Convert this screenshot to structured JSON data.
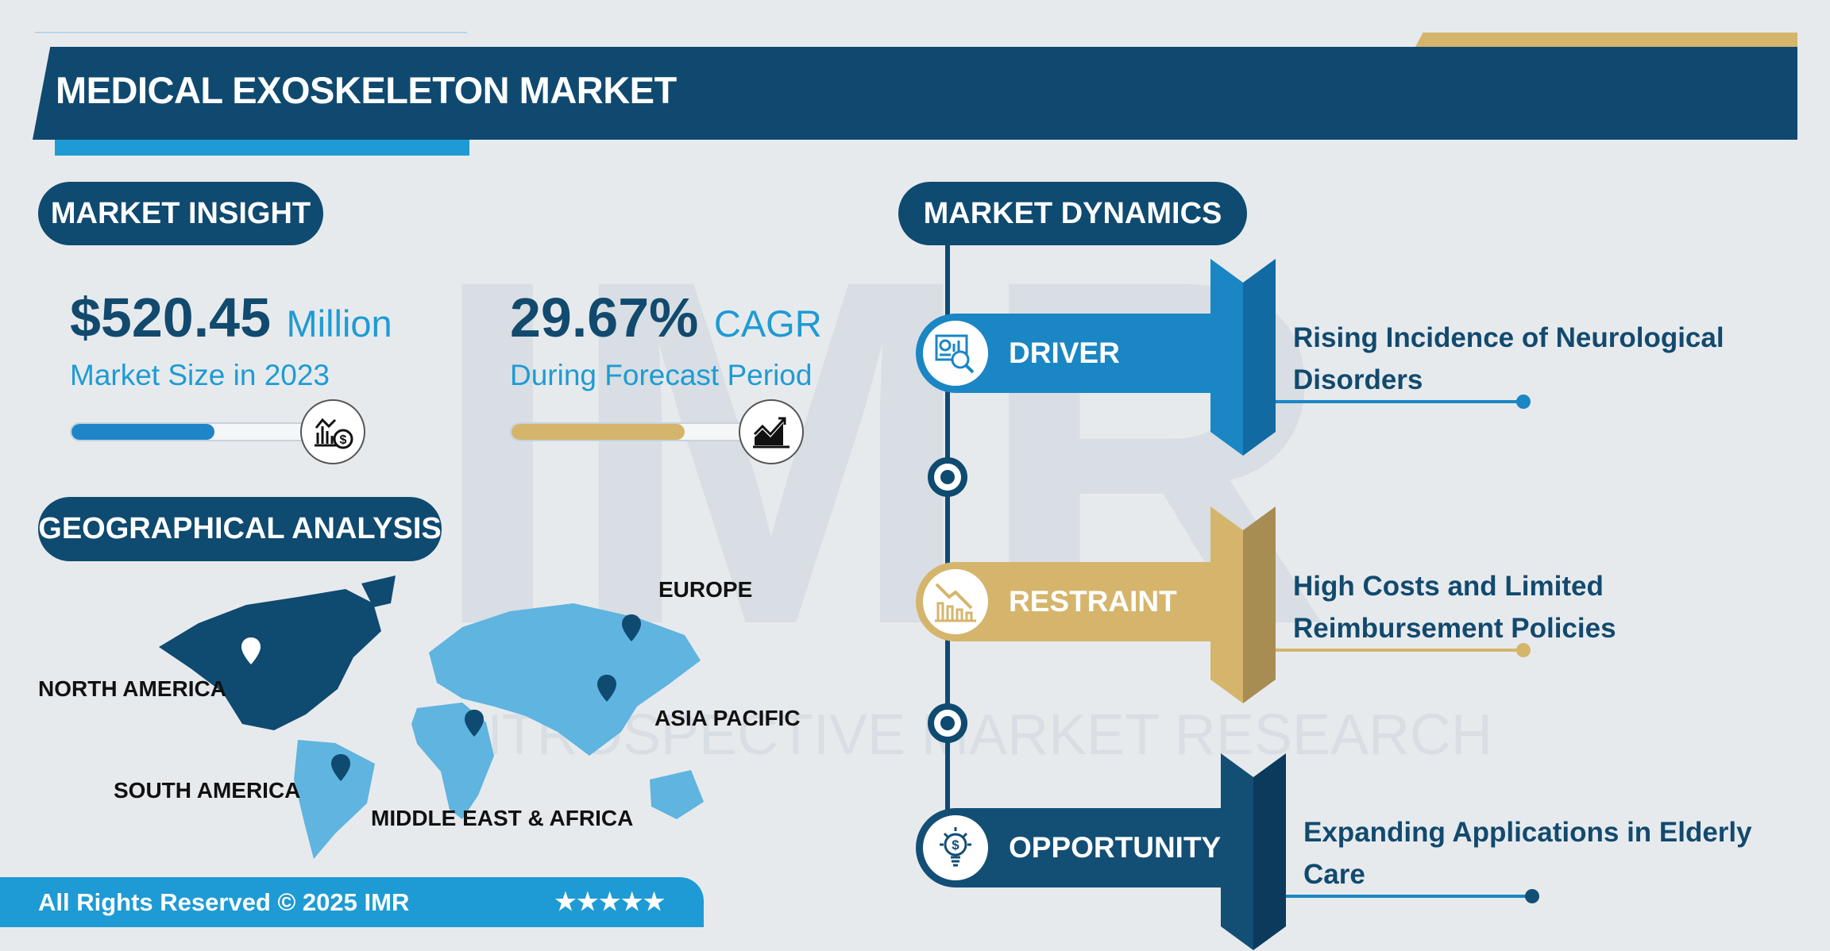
{
  "header": {
    "title": "MEDICAL EXOSKELETON MARKET"
  },
  "watermark": {
    "logo": "IMR",
    "text": "INTROSPECTIVE MARKET RESEARCH"
  },
  "market_insight": {
    "label": "MARKET INSIGHT",
    "size": {
      "value": "$520.45",
      "unit": "Million",
      "caption": "Market Size in 2023",
      "progress": 0.55,
      "icon": "bar-chart-dollar-icon"
    },
    "cagr": {
      "value": "29.67%",
      "unit": "CAGR",
      "caption": "During Forecast Period",
      "progress": 0.67,
      "icon": "growth-chart-icon"
    }
  },
  "geographical": {
    "label": "GEOGRAPHICAL ANALYSIS",
    "regions": [
      "NORTH AMERICA",
      "SOUTH AMERICA",
      "MIDDLE EAST & AFRICA",
      "ASIA PACIFIC",
      "EUROPE"
    ],
    "highlighted": "NORTH AMERICA"
  },
  "footer": {
    "text": "All Rights Reserved © 2025 IMR",
    "stars": "★★★★★"
  },
  "dynamics": {
    "label": "MARKET DYNAMICS",
    "items": [
      {
        "label": "DRIVER",
        "line1": "Rising Incidence of Neurological",
        "line2": "Disorders",
        "color": "#1a86c4",
        "dark": "#126aa2",
        "icon": "analytics-magnifier-icon"
      },
      {
        "label": "RESTRAINT",
        "line1": "High Costs and Limited",
        "line2": "Reimbursement Policies",
        "color": "#d5b56c",
        "dark": "#a88d52",
        "icon": "declining-chart-icon"
      },
      {
        "label": "OPPORTUNITY",
        "line1": "Expanding Applications in Elderly",
        "line2": "Care",
        "color": "#134e75",
        "dark": "#0b3a5c",
        "icon": "lightbulb-dollar-icon"
      }
    ]
  },
  "colors": {
    "navy": "#0f4a70",
    "accent": "#1e9bd4",
    "gold": "#d5b56c",
    "background": "#e7eaed"
  }
}
